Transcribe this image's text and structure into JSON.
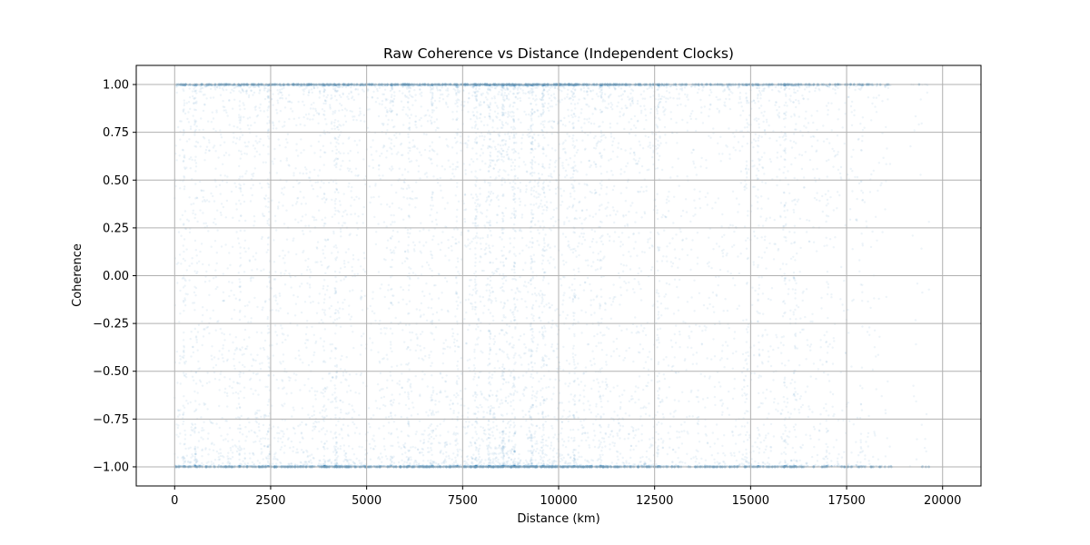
{
  "chart_data": {
    "type": "scatter",
    "title": "Raw Coherence vs Distance (Independent Clocks)",
    "xlabel": "Distance (km)",
    "ylabel": "Coherence",
    "xlim": [
      -1000,
      21000
    ],
    "ylim": [
      -1.1,
      1.1
    ],
    "xticks": [
      0,
      2500,
      5000,
      7500,
      10000,
      12500,
      15000,
      17500,
      20000
    ],
    "xtick_labels": [
      "0",
      "2500",
      "5000",
      "7500",
      "10000",
      "12500",
      "15000",
      "17500",
      "20000"
    ],
    "yticks": [
      1.0,
      0.75,
      0.5,
      0.25,
      0.0,
      -0.25,
      -0.5,
      -0.75,
      -1.0
    ],
    "ytick_labels": [
      "1.00",
      "0.75",
      "0.50",
      "0.25",
      "0.00",
      "−0.25",
      "−0.50",
      "−0.75",
      "−1.00"
    ],
    "grid": true,
    "legend": "none",
    "marker_color": "#1f77b4",
    "marker_alpha": 0.08,
    "x_data_extent": [
      0,
      20000
    ],
    "y_data_extent": [
      -1.0,
      1.0
    ],
    "density_profile": [
      {
        "x": 0,
        "density": 0.55
      },
      {
        "x": 500,
        "density": 0.6
      },
      {
        "x": 1000,
        "density": 0.55
      },
      {
        "x": 1500,
        "density": 0.6
      },
      {
        "x": 2000,
        "density": 0.6
      },
      {
        "x": 2500,
        "density": 0.65
      },
      {
        "x": 3000,
        "density": 0.55
      },
      {
        "x": 3500,
        "density": 0.6
      },
      {
        "x": 4000,
        "density": 0.7
      },
      {
        "x": 4500,
        "density": 0.75
      },
      {
        "x": 5000,
        "density": 0.6
      },
      {
        "x": 5500,
        "density": 0.55
      },
      {
        "x": 6000,
        "density": 0.6
      },
      {
        "x": 6500,
        "density": 0.7
      },
      {
        "x": 7000,
        "density": 0.55
      },
      {
        "x": 7500,
        "density": 0.65
      },
      {
        "x": 8000,
        "density": 1.0
      },
      {
        "x": 8500,
        "density": 1.0
      },
      {
        "x": 9000,
        "density": 1.0
      },
      {
        "x": 9500,
        "density": 0.95
      },
      {
        "x": 10000,
        "density": 0.85
      },
      {
        "x": 10500,
        "density": 0.8
      },
      {
        "x": 11000,
        "density": 0.75
      },
      {
        "x": 11500,
        "density": 0.65
      },
      {
        "x": 12000,
        "density": 0.55
      },
      {
        "x": 12500,
        "density": 0.6
      },
      {
        "x": 13000,
        "density": 0.45
      },
      {
        "x": 13500,
        "density": 0.4
      },
      {
        "x": 14000,
        "density": 0.35
      },
      {
        "x": 14500,
        "density": 0.4
      },
      {
        "x": 15000,
        "density": 0.45
      },
      {
        "x": 15500,
        "density": 0.5
      },
      {
        "x": 16000,
        "density": 0.55
      },
      {
        "x": 16500,
        "density": 0.35
      },
      {
        "x": 17000,
        "density": 0.3
      },
      {
        "x": 17500,
        "density": 0.3
      },
      {
        "x": 18000,
        "density": 0.25
      },
      {
        "x": 18500,
        "density": 0.15
      },
      {
        "x": 19000,
        "density": 0.0
      },
      {
        "x": 19500,
        "density": 0.1
      },
      {
        "x": 20000,
        "density": 0.03
      }
    ],
    "empty_ranges": [
      [
        18700,
        19150
      ],
      [
        19650,
        19950
      ]
    ],
    "dense_streaks_x": [
      250,
      550,
      1700,
      2450,
      3900,
      4200,
      5650,
      6100,
      6700,
      7350,
      7850,
      8200,
      8550,
      8850,
      9300,
      9600,
      10400,
      11100,
      12600,
      14900,
      15200,
      15900,
      16150,
      17000,
      17900,
      19250,
      19450
    ]
  }
}
